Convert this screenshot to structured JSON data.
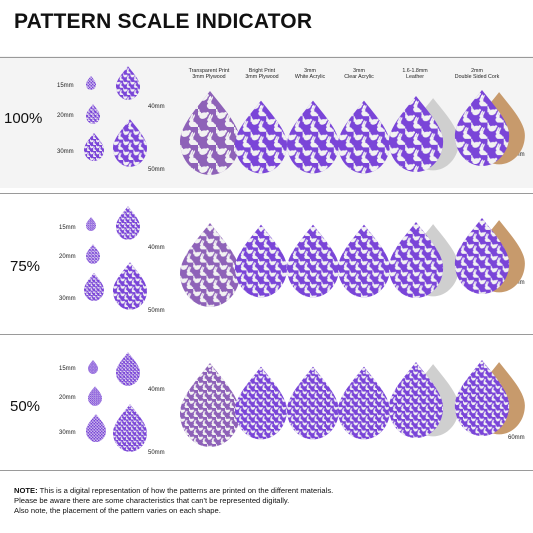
{
  "title": "PATTERN SCALE INDICATOR",
  "colors": {
    "purple": "#7a45d8",
    "purple_dark": "#5f2fb8",
    "plywood_tint": "#8e62b8",
    "leather": "#cfcfcf",
    "cork": "#c79a6c",
    "pattern": "#f2f2f2",
    "plywood_pattern": "#d8b7a0"
  },
  "icons": [
    "teardrop-shape-icon",
    "bunny-pattern-icon"
  ],
  "materials": [
    {
      "line1": "Transparent Print",
      "line2": "3mm Plywood"
    },
    {
      "line1": "Bright Print",
      "line2": "3mm Plywood"
    },
    {
      "line1": "3mm",
      "line2": "White Acrylic"
    },
    {
      "line1": "3mm",
      "line2": "Clear Acrylic"
    },
    {
      "line1": "1.6-1.8mm",
      "line2": "Leather"
    },
    {
      "line1": "2mm",
      "line2": "Double Sided Cork"
    }
  ],
  "rows": [
    {
      "scale": "100%",
      "s15": "15mm",
      "s20": "20mm",
      "s30": "30mm",
      "s40": "40mm",
      "s50": "50mm",
      "s60": "60mm"
    },
    {
      "scale": "75%",
      "s15": "15mm",
      "s20": "20mm",
      "s30": "30mm",
      "s40": "40mm",
      "s50": "50mm",
      "s60": "60mm"
    },
    {
      "scale": "50%",
      "s15": "15mm",
      "s20": "20mm",
      "s30": "30mm",
      "s40": "40mm",
      "s50": "50mm",
      "s60": "60mm"
    }
  ],
  "note": {
    "label": "NOTE:",
    "line1": " This is a digital representation of how the patterns are printed on the different materials.",
    "line2": "Please be aware there are some characteristics that can't be represented digitally.",
    "line3": "Also note, the placement of the pattern varies on each shape."
  }
}
